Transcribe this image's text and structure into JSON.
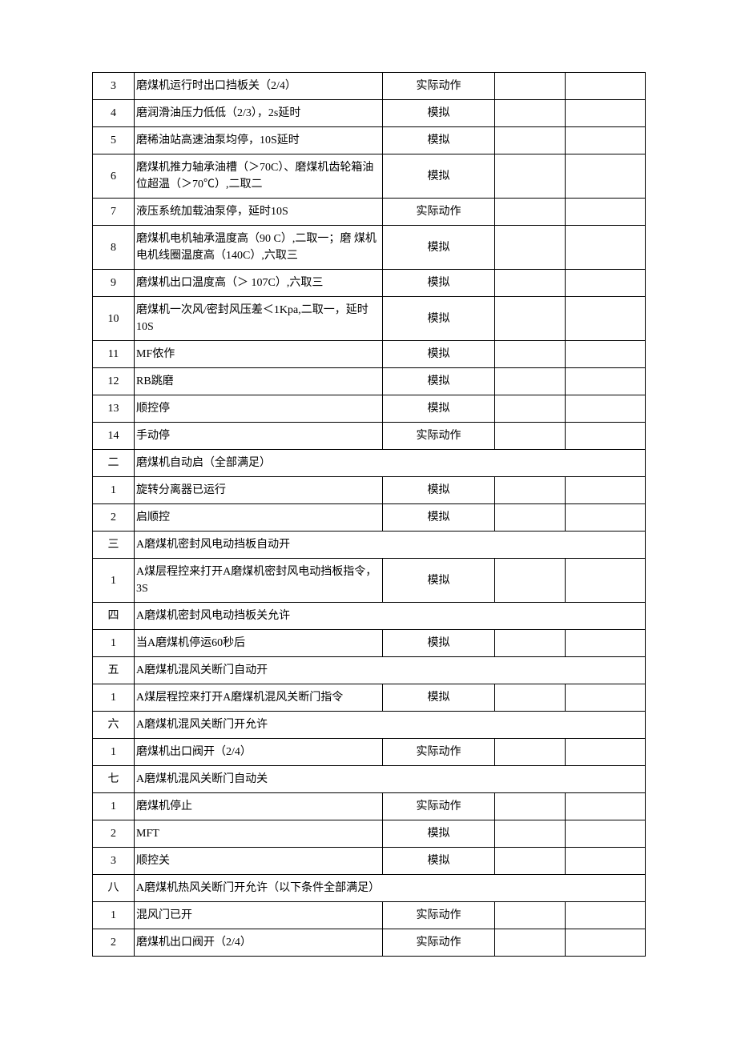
{
  "table": {
    "columns": {
      "num_width": 52,
      "desc_width": 310,
      "method_width": 140,
      "empty1_width": 88,
      "empty2_width": 100
    },
    "colors": {
      "border": "#000000",
      "background": "#ffffff",
      "text": "#000000"
    },
    "font_size": 14,
    "rows": [
      {
        "num": "3",
        "desc": "磨煤机运行时出口挡板关（2/4）",
        "method": "实际动作",
        "type": "data"
      },
      {
        "num": "4",
        "desc": "磨润滑油压力低低（2/3），2s延时",
        "method": "模拟",
        "type": "data"
      },
      {
        "num": "5",
        "desc": "磨稀油站高速油泵均停，10S延时",
        "method": "模拟",
        "type": "data"
      },
      {
        "num": "6",
        "desc": "磨煤机推力轴承油槽（＞70C）、磨煤机齿轮箱油位超温（＞70℃）,二取二",
        "method": "模拟",
        "type": "data"
      },
      {
        "num": "7",
        "desc": "液压系统加载油泵停，延时10S",
        "method": "实际动作",
        "type": "data"
      },
      {
        "num": "8",
        "desc": "磨煤机电机轴承温度高（90 C）,二取一；磨 煤机电机线圈温度高（140C）,六取三",
        "method": "模拟",
        "type": "data"
      },
      {
        "num": "9",
        "desc": "磨煤机出口温度高（＞ 107C）,六取三",
        "method": "模拟",
        "type": "data"
      },
      {
        "num": "10",
        "desc": "磨煤机一次风/密封风压差＜1Kpa,二取一，延时10S",
        "method": "模拟",
        "type": "data"
      },
      {
        "num": "11",
        "desc": "MF侬作",
        "method": "模拟",
        "type": "data"
      },
      {
        "num": "12",
        "desc": "RB跳磨",
        "method": "模拟",
        "type": "data"
      },
      {
        "num": "13",
        "desc": "顺控停",
        "method": "模拟",
        "type": "data"
      },
      {
        "num": "14",
        "desc": "手动停",
        "method": "实际动作",
        "type": "data"
      },
      {
        "num": "二",
        "desc": "磨煤机自动启（全部满足）",
        "method": "",
        "type": "section"
      },
      {
        "num": "1",
        "desc": "旋转分离器已运行",
        "method": "模拟",
        "type": "data"
      },
      {
        "num": "2",
        "desc": "启顺控",
        "method": "模拟",
        "type": "data"
      },
      {
        "num": "三",
        "desc": "A磨煤机密封风电动挡板自动开",
        "method": "",
        "type": "section"
      },
      {
        "num": "1",
        "desc": "A煤层程控来打开A磨煤机密封风电动挡板指令，3S",
        "method": "模拟",
        "type": "data"
      },
      {
        "num": "四",
        "desc": "A磨煤机密封风电动挡板关允许",
        "method": "",
        "type": "section"
      },
      {
        "num": "1",
        "desc": "当A磨煤机停运60秒后",
        "method": "模拟",
        "type": "data"
      },
      {
        "num": "五",
        "desc": "A磨煤机混风关断门自动开",
        "method": "",
        "type": "section"
      },
      {
        "num": "1",
        "desc": "A煤层程控来打开A磨煤机混风关断门指令",
        "method": "模拟",
        "type": "data"
      },
      {
        "num": "六",
        "desc": "A磨煤机混风关断门开允许",
        "method": "",
        "type": "section"
      },
      {
        "num": "1",
        "desc": "磨煤机出口阀开（2/4）",
        "method": "实际动作",
        "type": "data"
      },
      {
        "num": "七",
        "desc": "A磨煤机混风关断门自动关",
        "method": "",
        "type": "section"
      },
      {
        "num": "1",
        "desc": "磨煤机停止",
        "method": "实际动作",
        "type": "data"
      },
      {
        "num": "2",
        "desc": "MFT",
        "method": "模拟",
        "type": "data"
      },
      {
        "num": "3",
        "desc": "顺控关",
        "method": "模拟",
        "type": "data"
      },
      {
        "num": "八",
        "desc": "A磨煤机热风关断门开允许（以下条件全部满足）",
        "method": "",
        "type": "section"
      },
      {
        "num": "1",
        "desc": "混风门已开",
        "method": "实际动作",
        "type": "data"
      },
      {
        "num": "2",
        "desc": "磨煤机出口阀开（2/4）",
        "method": "实际动作",
        "type": "data"
      }
    ]
  }
}
